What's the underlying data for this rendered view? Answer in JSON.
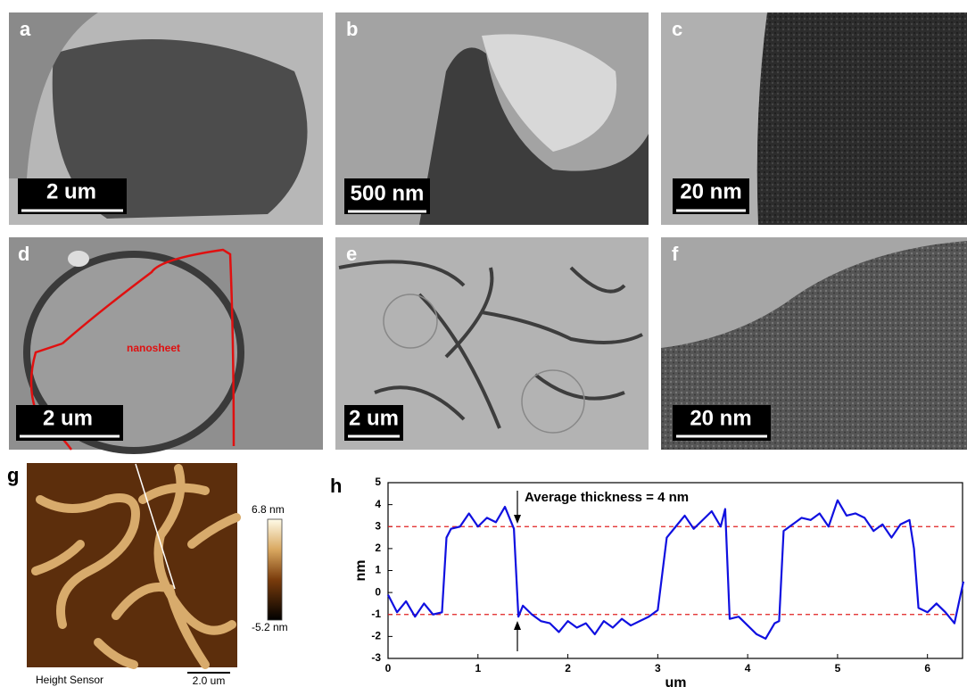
{
  "panels": [
    {
      "label": "a",
      "scale_bar": "2 um"
    },
    {
      "label": "b",
      "scale_bar": "500 nm"
    },
    {
      "label": "c",
      "scale_bar": "20 nm"
    },
    {
      "label": "d",
      "scale_bar": "2 um",
      "annotation": "nanosheet"
    },
    {
      "label": "e",
      "scale_bar": "2 um"
    },
    {
      "label": "f",
      "scale_bar": "20 nm"
    }
  ],
  "afm": {
    "label": "g",
    "colorbar_max": "6.8 nm",
    "colorbar_min": "-5.2 nm",
    "caption": "Height Sensor",
    "scale_bar": "2.0 um"
  },
  "chart_data": {
    "type": "line",
    "label": "h",
    "xlabel": "um",
    "ylabel": "nm",
    "annotation": "Average thickness = 4 nm",
    "x": [
      0,
      0.1,
      0.2,
      0.3,
      0.4,
      0.5,
      0.6,
      0.65,
      0.7,
      0.8,
      0.9,
      1.0,
      1.1,
      1.2,
      1.3,
      1.4,
      1.45,
      1.5,
      1.6,
      1.7,
      1.8,
      1.9,
      2.0,
      2.1,
      2.2,
      2.3,
      2.4,
      2.5,
      2.6,
      2.7,
      2.8,
      2.9,
      3.0,
      3.1,
      3.2,
      3.3,
      3.4,
      3.5,
      3.6,
      3.7,
      3.75,
      3.8,
      3.9,
      4.0,
      4.1,
      4.2,
      4.3,
      4.35,
      4.4,
      4.5,
      4.6,
      4.7,
      4.8,
      4.9,
      5.0,
      5.1,
      5.2,
      5.3,
      5.4,
      5.5,
      5.6,
      5.7,
      5.8,
      5.85,
      5.9,
      6.0,
      6.1,
      6.2,
      6.3,
      6.4
    ],
    "series": [
      {
        "name": "profile",
        "color": "#1010e0",
        "values": [
          -0.1,
          -0.9,
          -0.4,
          -1.1,
          -0.5,
          -1.0,
          -0.9,
          2.5,
          2.9,
          3.0,
          3.6,
          3.0,
          3.4,
          3.2,
          3.9,
          2.9,
          -1.1,
          -0.6,
          -1.0,
          -1.3,
          -1.4,
          -1.8,
          -1.3,
          -1.6,
          -1.4,
          -1.9,
          -1.3,
          -1.6,
          -1.2,
          -1.5,
          -1.3,
          -1.1,
          -0.8,
          2.5,
          3.0,
          3.5,
          2.9,
          3.3,
          3.7,
          3.0,
          3.8,
          -1.2,
          -1.1,
          -1.5,
          -1.9,
          -2.1,
          -1.4,
          -1.3,
          2.8,
          3.1,
          3.4,
          3.3,
          3.6,
          3.0,
          4.2,
          3.5,
          3.6,
          3.4,
          2.8,
          3.1,
          2.5,
          3.1,
          3.3,
          2.0,
          -0.7,
          -0.9,
          -0.5,
          -0.9,
          -1.4,
          0.5
        ]
      }
    ],
    "reference_lines": [
      3,
      -1
    ],
    "reference_color": "#e02020",
    "xlim": [
      0,
      6.4
    ],
    "ylim": [
      -3,
      5
    ],
    "xticks": [
      0,
      1,
      2,
      3,
      4,
      5,
      6
    ],
    "yticks": [
      -3,
      -2,
      -1,
      0,
      1,
      2,
      3,
      4,
      5
    ]
  }
}
